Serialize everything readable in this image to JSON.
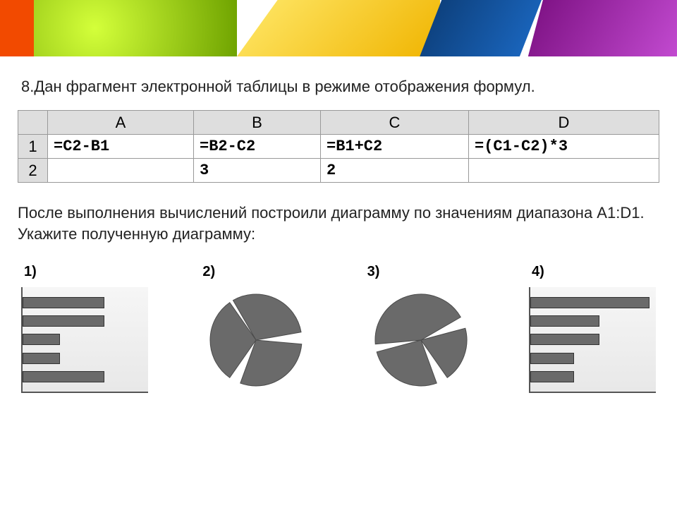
{
  "banner": {
    "colors": [
      "#f24a00",
      "#8fbf00",
      "#ffd400",
      "#0a4a8a",
      "#8a1a8a"
    ],
    "stops": [
      0,
      0.05,
      0.35,
      0.65,
      0.78,
      1.0
    ]
  },
  "question": "8.Дан фрагмент электронной таблицы в режиме отображения формул.",
  "spreadsheet": {
    "columns": [
      "",
      "A",
      "B",
      "C",
      "D"
    ],
    "rows": [
      {
        "head": "1",
        "cells": [
          "=C2-B1",
          "=B2-C2",
          "=B1+C2",
          "=(C1-C2)*3"
        ]
      },
      {
        "head": "2",
        "cells": [
          "",
          "3",
          "2",
          ""
        ]
      }
    ]
  },
  "followup": "После выполнения вычислений построили диаграмму по значениям диапазона A1:D1. Укажите полученную диаграмму:",
  "options": [
    {
      "label": "1)",
      "type": "hbar",
      "bars": [
        0.65,
        0.65,
        0.3,
        0.3,
        0.65
      ],
      "bar_color": "#6a6a6a",
      "bg": "#ededed"
    },
    {
      "label": "2)",
      "type": "pie",
      "slices": [
        {
          "start": -30,
          "end": 80,
          "color": "#6a6a6a"
        },
        {
          "start": 95,
          "end": 200,
          "color": "#6a6a6a"
        },
        {
          "start": 215,
          "end": 325,
          "color": "#6a6a6a"
        }
      ],
      "radius": 65
    },
    {
      "label": "3)",
      "type": "pie",
      "slices": [
        {
          "start": -95,
          "end": 60,
          "color": "#6a6a6a"
        },
        {
          "start": 75,
          "end": 145,
          "color": "#6a6a6a"
        },
        {
          "start": 160,
          "end": 255,
          "color": "#6a6a6a"
        }
      ],
      "radius": 65
    },
    {
      "label": "4)",
      "type": "hbar",
      "bars": [
        0.95,
        0.55,
        0.55,
        0.35,
        0.35
      ],
      "bar_color": "#6a6a6a",
      "bg": "#ededed"
    }
  ],
  "text_color": "#222222"
}
